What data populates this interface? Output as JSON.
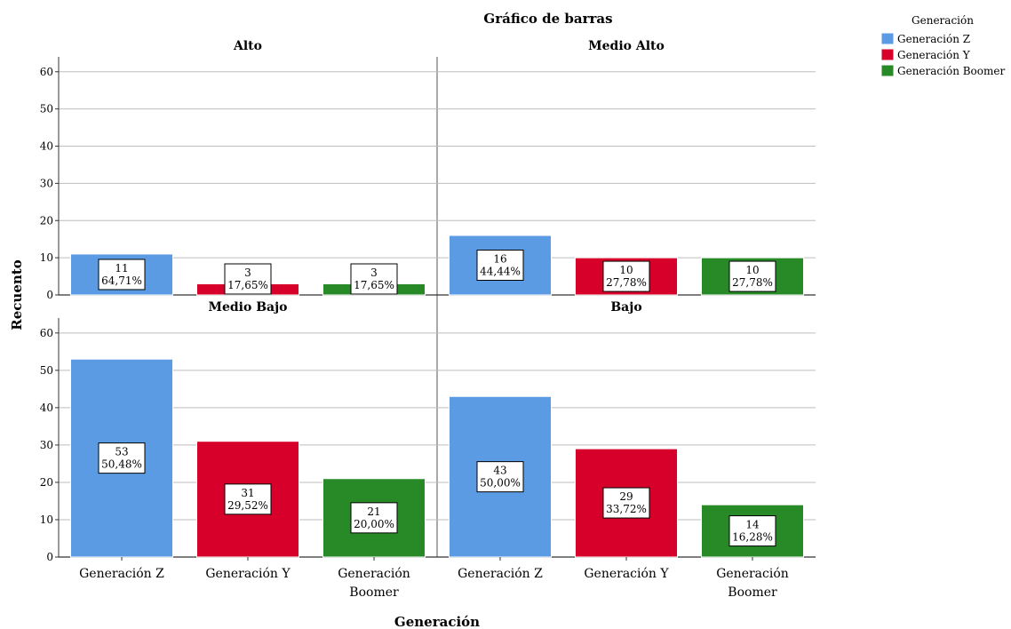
{
  "chart_data": {
    "type": "bar",
    "title": "Gráfico de barras",
    "xlabel": "Generación",
    "ylabel": "Recuento",
    "ylim": [
      0,
      64
    ],
    "yticks": [
      0,
      10,
      20,
      30,
      40,
      50,
      60
    ],
    "grid": true,
    "legend_position": "top-right",
    "legend": {
      "title": "Generación",
      "entries": [
        {
          "name": "Generación Z",
          "color": "#5b9be4"
        },
        {
          "name": "Generación Y",
          "color": "#d6002a"
        },
        {
          "name": "Generación Boomer",
          "color": "#278a27"
        }
      ]
    },
    "categories": [
      "Generación Z",
      "Generación Y",
      "Generación Boomer"
    ],
    "panels": [
      {
        "title": "Alto",
        "values": [
          11,
          3,
          3
        ],
        "labels": [
          "64,71%",
          "17,65%",
          "17,65%"
        ]
      },
      {
        "title": "Medio Alto",
        "values": [
          16,
          10,
          10
        ],
        "labels": [
          "44,44%",
          "27,78%",
          "27,78%"
        ]
      },
      {
        "title": "Medio Bajo",
        "values": [
          53,
          31,
          21
        ],
        "labels": [
          "50,48%",
          "29,52%",
          "20,00%"
        ]
      },
      {
        "title": "Bajo",
        "values": [
          43,
          29,
          14
        ],
        "labels": [
          "50,00%",
          "33,72%",
          "16,28%"
        ]
      }
    ]
  }
}
